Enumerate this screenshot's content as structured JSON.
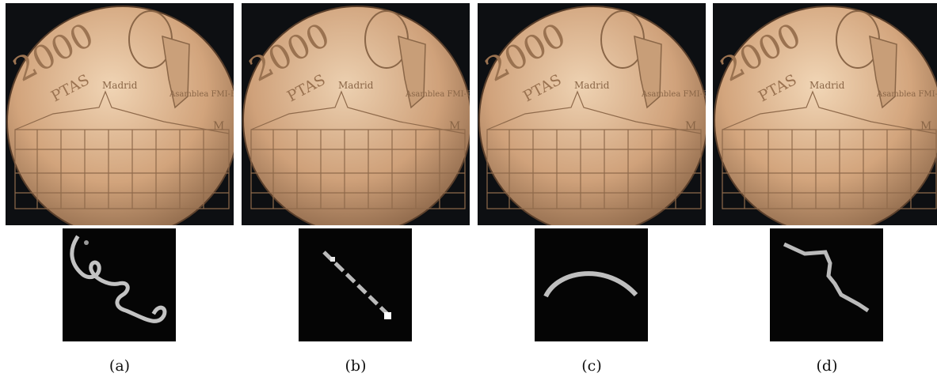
{
  "coin": {
    "denomination": "2000",
    "unit": "PTAS",
    "city": "Madrid",
    "note": "Asamblea FMI-BM",
    "mint_mark": "M",
    "colors": {
      "metal_light": "#e9c9a6",
      "metal_mid": "#c99a72",
      "metal_dark": "#7d5a3e",
      "background": "#0d0f12"
    }
  },
  "panels": [
    {
      "caption": "(a)",
      "kernel": "curly-kernel"
    },
    {
      "caption": "(b)",
      "kernel": "diagonal-kernel"
    },
    {
      "caption": "(c)",
      "kernel": "arc-kernel"
    },
    {
      "caption": "(d)",
      "kernel": "zigzag-kernel"
    }
  ]
}
